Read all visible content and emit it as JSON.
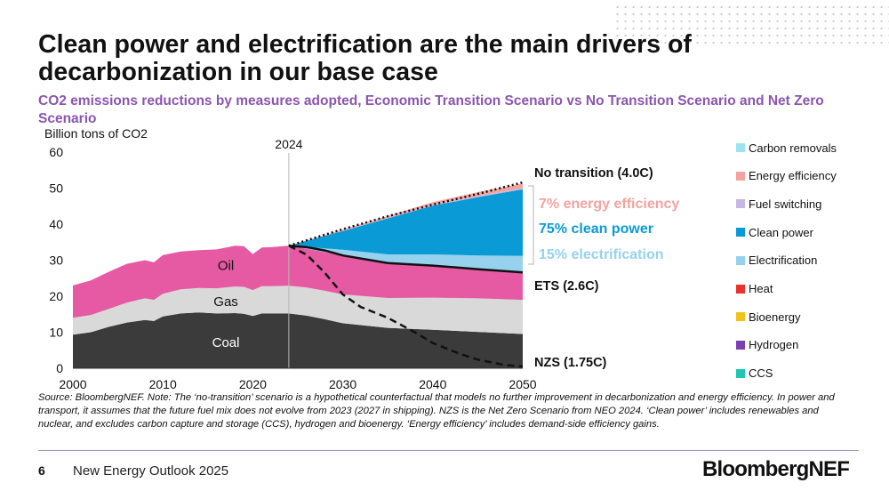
{
  "title": "Clean power and electrification are the main drivers of decarbonization in our base case",
  "subtitle": "CO2 emissions reductions by measures adopted, Economic Transition Scenario vs No Transition Scenario and Net Zero Scenario",
  "source_note": "Source: BloombergNEF. Note: The ‘no-transition’ scenario is a hypothetical counterfactual that models no further improvement in decarbonization and energy efficiency. In power and transport, it assumes that the future fuel mix does not evolve from 2023 (2027 in shipping). NZS is the Net Zero Scenario from NEO 2024. ‘Clean power’ includes renewables and nuclear, and excludes carbon capture and storage (CCS), hydrogen and bioenergy. ‘Energy efficiency’ includes demand-side efficiency gains.",
  "footer": {
    "page_number": "6",
    "report_name": "New Energy Outlook 2025",
    "brand": "BloombergNEF"
  },
  "legend": [
    {
      "label": "Carbon removals",
      "color": "#9ee3ee"
    },
    {
      "label": "Energy efficiency",
      "color": "#f3a3a0"
    },
    {
      "label": "Fuel switching",
      "color": "#c9b7e3"
    },
    {
      "label": "Clean power",
      "color": "#0a9bd6"
    },
    {
      "label": "Electrification",
      "color": "#96d2ee"
    },
    {
      "label": "Heat",
      "color": "#e8322b"
    },
    {
      "label": "Bioenergy",
      "color": "#f2c21b"
    },
    {
      "label": "Hydrogen",
      "color": "#7c3fb2"
    },
    {
      "label": "CCS",
      "color": "#1fc7b2"
    }
  ],
  "chart_data": {
    "type": "area",
    "ylabel": "Billion tons of CO2",
    "xlim": [
      2000,
      2050
    ],
    "ylim": [
      0,
      60
    ],
    "x_ticks": [
      "2000",
      "2010",
      "2020",
      "2030",
      "2040",
      "2050"
    ],
    "y_ticks": [
      "0",
      "10",
      "20",
      "30",
      "40",
      "50",
      "60"
    ],
    "marker": {
      "x": 2024,
      "label": "2024"
    },
    "history": {
      "years": [
        2000,
        2002,
        2004,
        2006,
        2008,
        2009,
        2010,
        2012,
        2014,
        2016,
        2018,
        2019,
        2020,
        2021,
        2022,
        2024
      ],
      "coal": [
        9.3,
        10.0,
        11.5,
        12.7,
        13.4,
        13.1,
        14.4,
        15.2,
        15.5,
        15.2,
        15.3,
        15.1,
        14.5,
        15.2,
        15.2,
        15.2
      ],
      "gas": [
        4.7,
        4.8,
        5.0,
        5.5,
        6.0,
        5.9,
        6.3,
        6.7,
        6.8,
        7.0,
        7.4,
        7.5,
        7.2,
        7.6,
        7.6,
        7.7
      ],
      "oil": [
        9.0,
        9.6,
        10.3,
        10.8,
        10.6,
        10.4,
        10.7,
        10.5,
        10.5,
        10.8,
        11.3,
        11.3,
        10.0,
        10.7,
        10.8,
        11.1
      ]
    },
    "ets_stack": {
      "years": [
        2024,
        2026,
        2028,
        2030,
        2035,
        2040,
        2045,
        2050
      ],
      "coal": [
        15.2,
        14.6,
        13.6,
        12.5,
        11.2,
        10.7,
        10.1,
        9.5
      ],
      "gas": [
        7.7,
        7.8,
        7.9,
        8.0,
        8.3,
        8.9,
        9.3,
        9.5
      ],
      "oil": [
        11.1,
        11.2,
        11.2,
        10.8,
        9.7,
        8.9,
        8.1,
        7.6
      ]
    },
    "wedges": {
      "years": [
        2024,
        2030,
        2035,
        2040,
        2045,
        2050
      ],
      "electrification": [
        0,
        1.6,
        2.4,
        3.1,
        3.8,
        4.6
      ],
      "clean_power": [
        0,
        5.2,
        10.0,
        13.5,
        16.2,
        18.5
      ],
      "fuel_switching": [
        0,
        0.1,
        0.15,
        0.2,
        0.3,
        0.3
      ],
      "energy_efficiency": [
        0,
        0.3,
        0.5,
        0.8,
        1.1,
        1.3
      ]
    },
    "series": [
      {
        "name": "No transition (4.0C)",
        "x": [
          2024,
          2030,
          2035,
          2040,
          2045,
          2050
        ],
        "values": [
          34.0,
          38.6,
          42.2,
          45.4,
          48.4,
          51.6
        ]
      },
      {
        "name": "ETS (2.6C)",
        "x": [
          2024,
          2026,
          2028,
          2030,
          2035,
          2040,
          2045,
          2050
        ],
        "values": [
          34.0,
          33.6,
          32.7,
          31.3,
          29.2,
          28.5,
          27.5,
          26.6
        ]
      },
      {
        "name": "NZS (1.75C)",
        "x": [
          2024,
          2026,
          2028,
          2030,
          2032,
          2035,
          2038,
          2040,
          2043,
          2045,
          2048,
          2050
        ],
        "values": [
          34.0,
          31.5,
          26.5,
          20.5,
          17.0,
          14.0,
          10.0,
          7.0,
          4.0,
          2.4,
          0.9,
          0.5
        ]
      }
    ],
    "area_labels": {
      "oil": "Oil",
      "gas": "Gas",
      "coal": "Coal"
    },
    "line_labels": {
      "nt": "No transition (4.0C)",
      "ets": "ETS (2.6C)",
      "nzs": "NZS (1.75C)"
    },
    "annotations": {
      "efficiency": "7% energy efficiency",
      "clean_power": "75% clean power",
      "electrification": "15% electrification"
    },
    "colors": {
      "coal": "#3b3b3b",
      "gas": "#d9d9d9",
      "oil": "#e55aa3",
      "annotation_efficiency": "#f3a3a0",
      "annotation_clean": "#0a9bd6",
      "annotation_electrification": "#96d2ee"
    }
  }
}
